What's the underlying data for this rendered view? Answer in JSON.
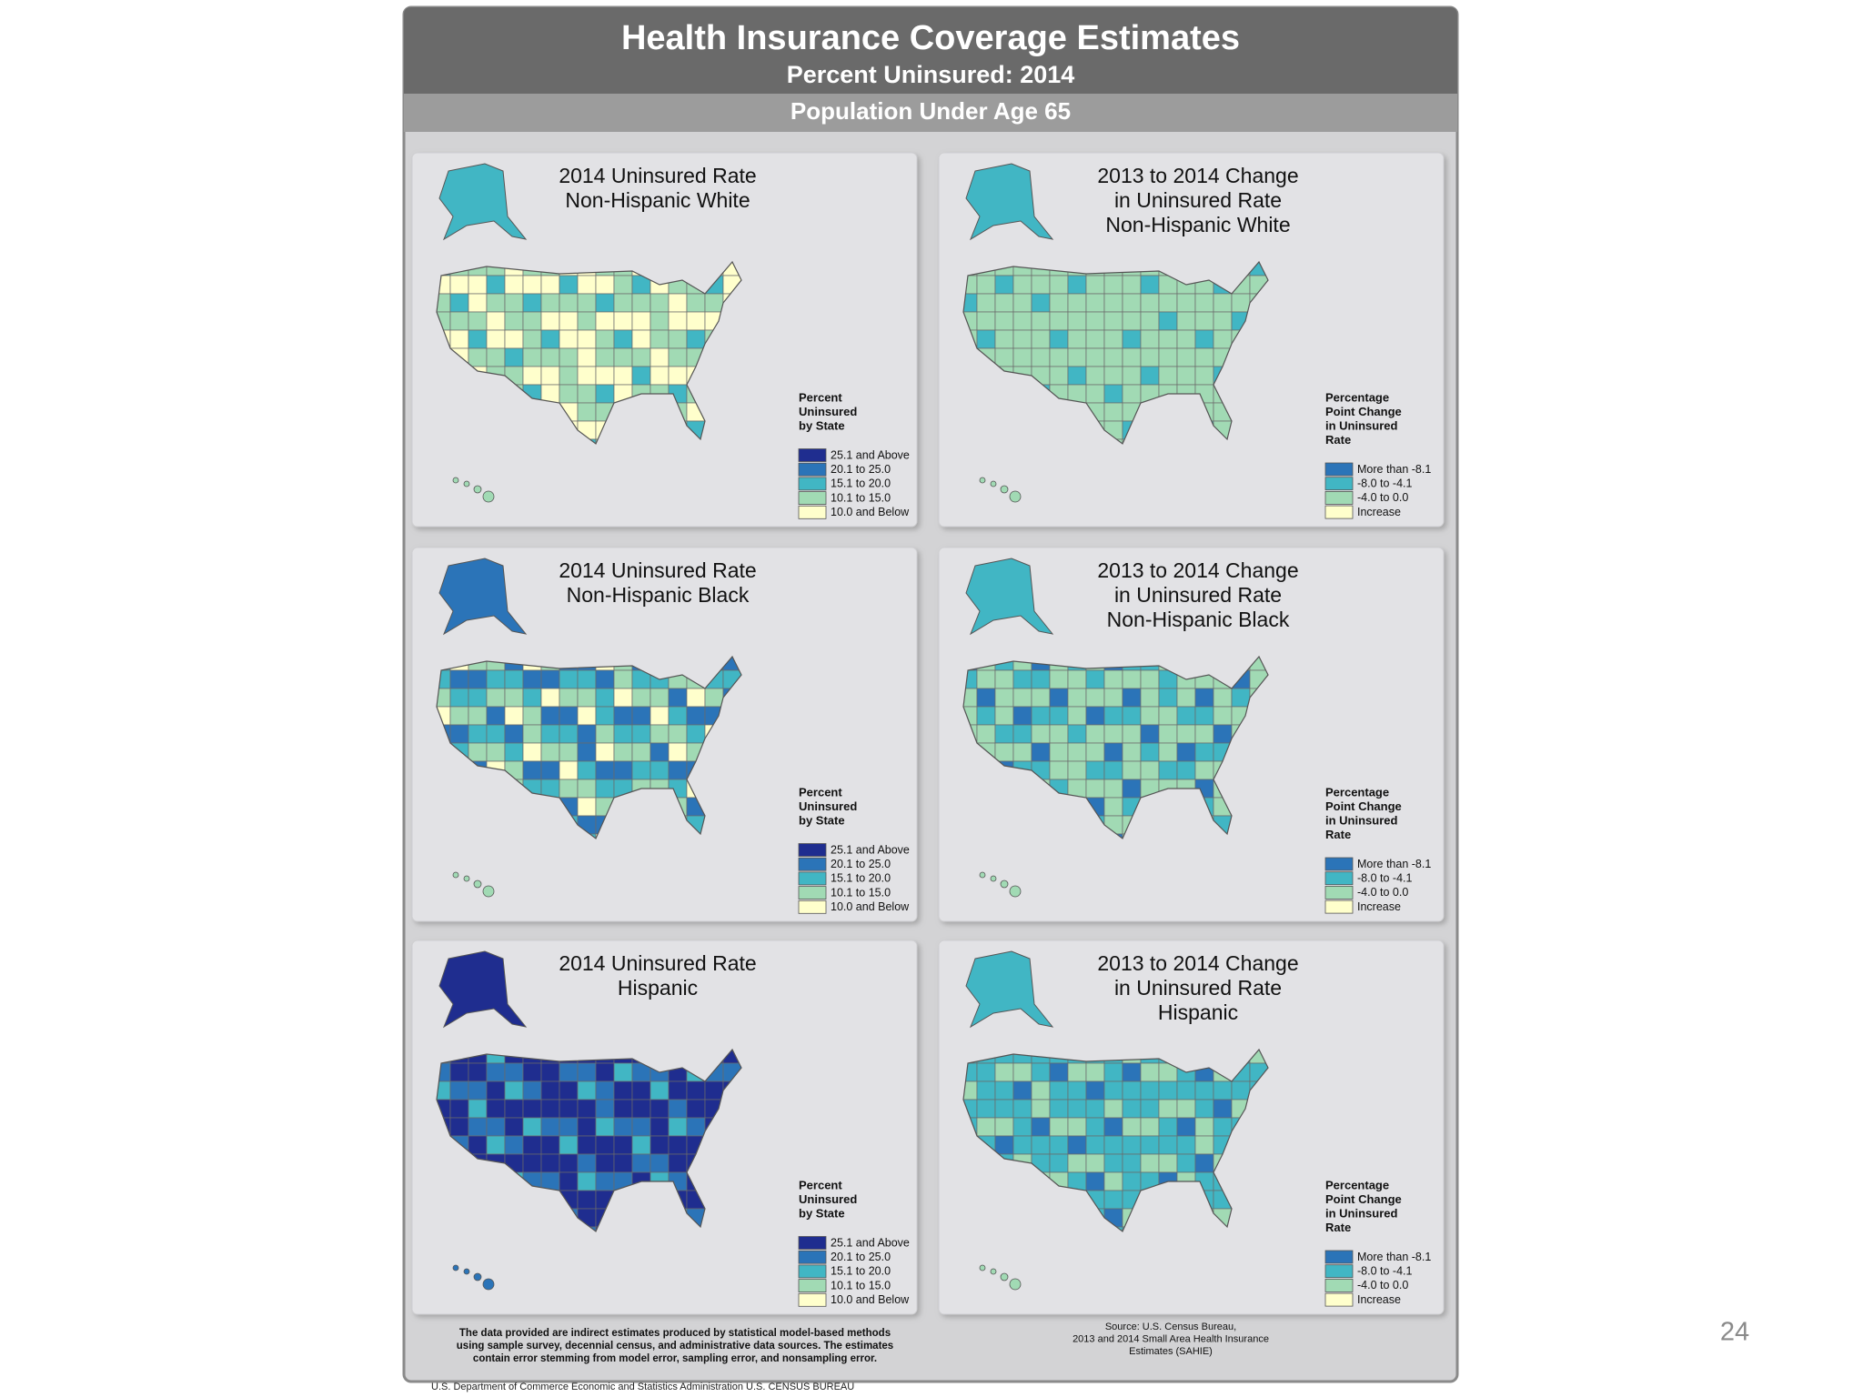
{
  "header": {
    "title": "Health Insurance Coverage Estimates",
    "subtitle": "Percent Uninsured: 2014",
    "population": "Population Under Age 65"
  },
  "panels": [
    {
      "title": [
        "2014 Uninsured Rate",
        "Non-Hispanic White"
      ],
      "legend_title": [
        "Percent",
        "Uninsured",
        "by State"
      ],
      "legend": [
        {
          "label": "25.1 and Above",
          "color": "#1f2d8f"
        },
        {
          "label": "20.1 to 25.0",
          "color": "#2b74b8"
        },
        {
          "label": "15.1 to 20.0",
          "color": "#41b6c4"
        },
        {
          "label": "10.1 to 15.0",
          "color": "#a1dab4"
        },
        {
          "label": "10.0 and Below",
          "color": "#ffffcc"
        }
      ]
    },
    {
      "title": [
        "2013 to 2014 Change",
        "in Uninsured Rate",
        "Non-Hispanic White"
      ],
      "legend_title": [
        "Percentage",
        "Point Change",
        "in Uninsured",
        "Rate"
      ],
      "legend": [
        {
          "label": "More than -8.1",
          "color": "#2b74b8"
        },
        {
          "label": "-8.0 to -4.1",
          "color": "#41b6c4"
        },
        {
          "label": "-4.0 to 0.0",
          "color": "#a1dab4"
        },
        {
          "label": "Increase",
          "color": "#ffffcc"
        }
      ]
    },
    {
      "title": [
        "2014 Uninsured Rate",
        "Non-Hispanic Black"
      ],
      "legend_title": [
        "Percent",
        "Uninsured",
        "by State"
      ],
      "legend": [
        {
          "label": "25.1 and Above",
          "color": "#1f2d8f"
        },
        {
          "label": "20.1 to 25.0",
          "color": "#2b74b8"
        },
        {
          "label": "15.1 to 20.0",
          "color": "#41b6c4"
        },
        {
          "label": "10.1 to 15.0",
          "color": "#a1dab4"
        },
        {
          "label": "10.0 and Below",
          "color": "#ffffcc"
        }
      ]
    },
    {
      "title": [
        "2013 to 2014 Change",
        "in Uninsured Rate",
        "Non-Hispanic Black"
      ],
      "legend_title": [
        "Percentage",
        "Point Change",
        "in Uninsured",
        "Rate"
      ],
      "legend": [
        {
          "label": "More than -8.1",
          "color": "#2b74b8"
        },
        {
          "label": "-8.0 to -4.1",
          "color": "#41b6c4"
        },
        {
          "label": "-4.0 to 0.0",
          "color": "#a1dab4"
        },
        {
          "label": "Increase",
          "color": "#ffffcc"
        }
      ]
    },
    {
      "title": [
        "2014 Uninsured Rate",
        "Hispanic"
      ],
      "legend_title": [
        "Percent",
        "Uninsured",
        "by State"
      ],
      "legend": [
        {
          "label": "25.1 and Above",
          "color": "#1f2d8f"
        },
        {
          "label": "20.1 to 25.0",
          "color": "#2b74b8"
        },
        {
          "label": "15.1 to 20.0",
          "color": "#41b6c4"
        },
        {
          "label": "10.1 to 15.0",
          "color": "#a1dab4"
        },
        {
          "label": "10.0 and Below",
          "color": "#ffffcc"
        }
      ]
    },
    {
      "title": [
        "2013 to 2014 Change",
        "in Uninsured Rate",
        "Hispanic"
      ],
      "legend_title": [
        "Percentage",
        "Point Change",
        "in Uninsured",
        "Rate"
      ],
      "legend": [
        {
          "label": "More than -8.1",
          "color": "#2b74b8"
        },
        {
          "label": "-8.0 to -4.1",
          "color": "#41b6c4"
        },
        {
          "label": "-4.0 to 0.0",
          "color": "#a1dab4"
        },
        {
          "label": "Increase",
          "color": "#ffffcc"
        }
      ]
    }
  ],
  "footnote": [
    "The data provided are indirect estimates produced by statistical model-based methods",
    "using sample survey, decennial census, and administrative data sources. The estimates",
    "contain error stemming from model error, sampling error, and nonsampling error."
  ],
  "source": [
    "Source: U.S. Census Bureau,",
    "2013 and 2014 Small Area Health Insurance",
    "Estimates (SAHIE)"
  ],
  "footer": "U.S. Department of Commerce  Economic and Statistics Administration  U.S. CENSUS BUREAU",
  "page_number": "24"
}
